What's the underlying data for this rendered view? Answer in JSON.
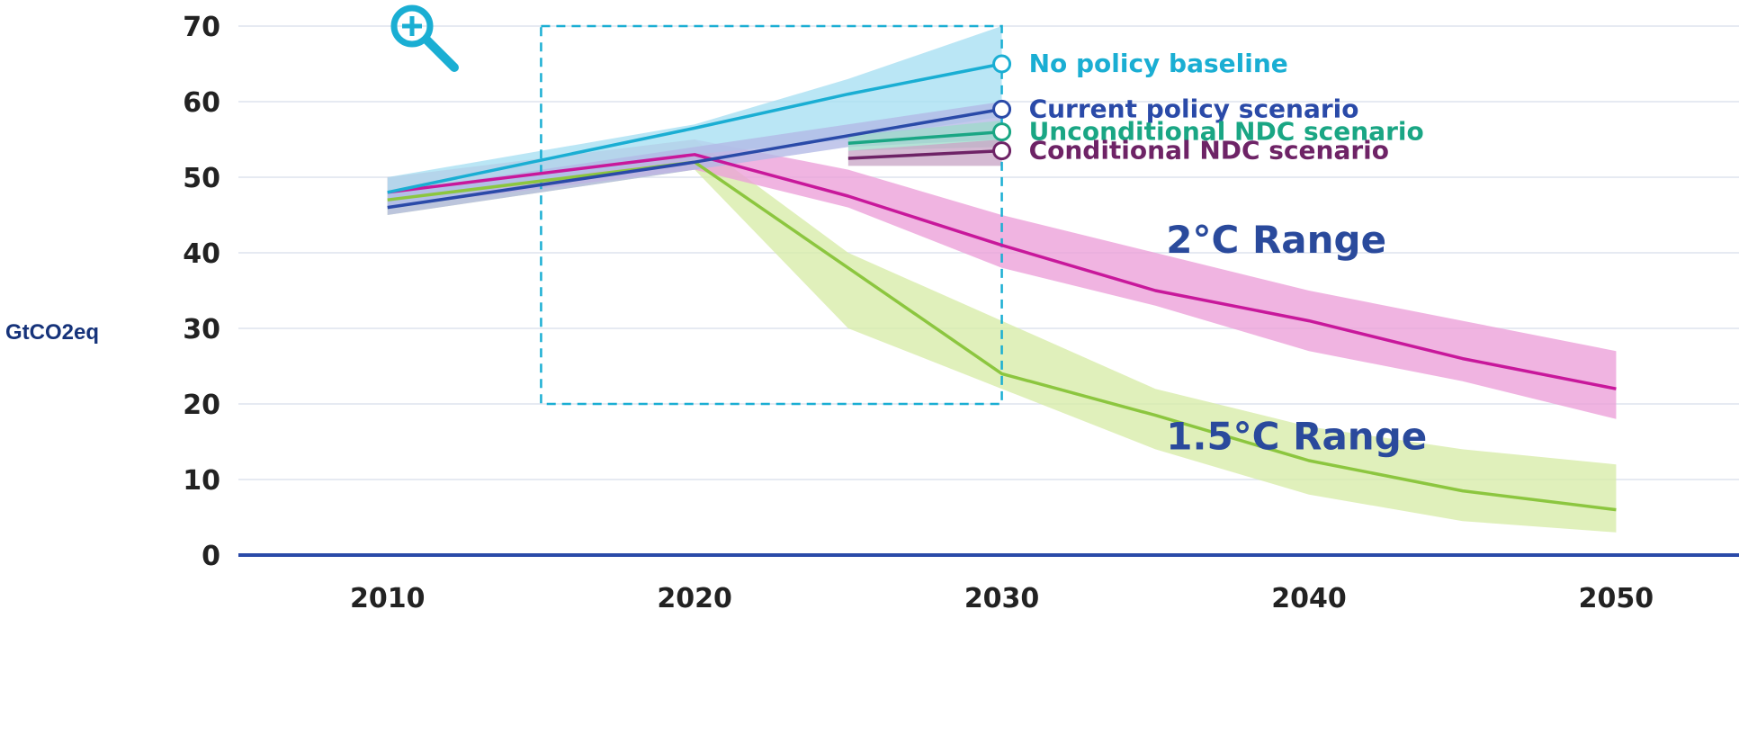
{
  "chart_data": {
    "type": "area",
    "ylabel": "GtCO2eq",
    "xlim": [
      2005,
      2054
    ],
    "ylim": [
      0,
      70
    ],
    "x_ticks": [
      2010,
      2020,
      2030,
      2040,
      2050
    ],
    "y_ticks": [
      0,
      10,
      20,
      30,
      40,
      50,
      60,
      70
    ],
    "grid": true,
    "zoom_box": {
      "x": [
        2015,
        2030
      ],
      "y": [
        20,
        70
      ]
    },
    "series": [
      {
        "name": "1.5°C Range",
        "color": "#8cc63f",
        "band_color": "#d7eca8",
        "x": [
          2010,
          2020,
          2025,
          2030,
          2035,
          2040,
          2045,
          2050
        ],
        "values": [
          47,
          52,
          38,
          24,
          18.5,
          12.5,
          8.5,
          6
        ],
        "lower": [
          45,
          51,
          30,
          22,
          14,
          8,
          4.5,
          3
        ],
        "upper": [
          50,
          55,
          40,
          31,
          22,
          17,
          14,
          12
        ],
        "label": "1.5°C Range"
      },
      {
        "name": "2°C Range",
        "color": "#c8189b",
        "band_color": "#ec9fd9",
        "x": [
          2010,
          2020,
          2025,
          2030,
          2035,
          2040,
          2045,
          2050
        ],
        "values": [
          48,
          53,
          47.5,
          41,
          35,
          31,
          26,
          22
        ],
        "lower": [
          46,
          51,
          46,
          38,
          33,
          27,
          23,
          18
        ],
        "upper": [
          50,
          55,
          51,
          45,
          40,
          35,
          31,
          27
        ],
        "label": "2°C Range"
      },
      {
        "name": "No policy baseline",
        "color": "#1aaed3",
        "band_color": "#a7dff2",
        "x": [
          2010,
          2020,
          2025,
          2030
        ],
        "values": [
          48,
          56.5,
          61,
          65
        ],
        "lower": [
          46,
          53,
          55,
          58
        ],
        "upper": [
          50,
          57,
          63,
          70
        ]
      },
      {
        "name": "Current policy scenario",
        "color": "#2a4aa8",
        "band_color": "#b2b9e6",
        "x": [
          2010,
          2020,
          2025,
          2030
        ],
        "values": [
          46,
          52,
          55.5,
          59
        ],
        "lower": [
          45,
          51,
          54,
          55
        ],
        "upper": [
          48,
          54,
          57,
          60
        ]
      },
      {
        "name": "Unconditional NDC scenario",
        "color": "#1aa684",
        "band_color": "#9fdacb",
        "x": [
          2025,
          2030
        ],
        "values": [
          54.5,
          56
        ],
        "lower": [
          53.5,
          54
        ],
        "upper": [
          55.5,
          57.5
        ]
      },
      {
        "name": "Conditional NDC scenario",
        "color": "#6e2366",
        "band_color": "#c9a7c6",
        "x": [
          2025,
          2030
        ],
        "values": [
          52.5,
          53.5
        ],
        "lower": [
          51.5,
          51.5
        ],
        "upper": [
          53.5,
          55
        ]
      }
    ]
  }
}
